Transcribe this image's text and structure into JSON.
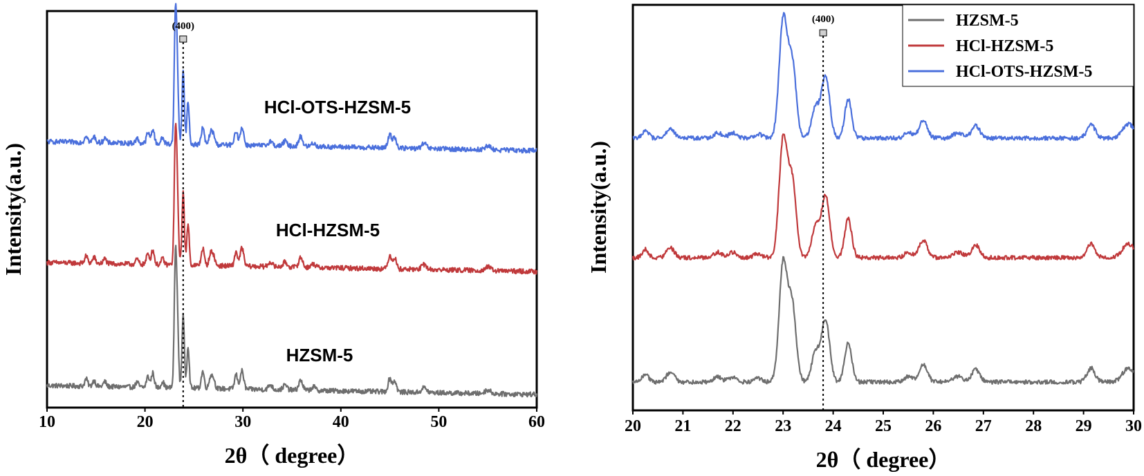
{
  "chart_data": [
    {
      "type": "line",
      "title": "",
      "xlabel": "2θ（ degree）",
      "ylabel": "Intensity(a.u.)",
      "xlim": [
        10,
        60
      ],
      "xticks": [
        10,
        20,
        30,
        40,
        50,
        60
      ],
      "y_ticks_shown": false,
      "grid": false,
      "legend": "none",
      "annotation": {
        "text": "(400)",
        "x": 23.9
      },
      "series": [
        {
          "name": "HZSM-5",
          "color": "#6e6e6e",
          "offset": 0,
          "baseline_start": 0.155,
          "baseline_end": 0.08
        },
        {
          "name": "HCl-HZSM-5",
          "color": "#c0393b",
          "offset": 1,
          "baseline_start": 0.155,
          "baseline_end": 0.08
        },
        {
          "name": "HCl-OTS-HZSM-5",
          "color": "#4a6fdc",
          "offset": 2,
          "baseline_start": 0.155,
          "baseline_end": 0.08
        }
      ],
      "peaks": [
        {
          "x": 14.0,
          "h": 0.06,
          "w": 0.15
        },
        {
          "x": 14.8,
          "h": 0.05,
          "w": 0.15
        },
        {
          "x": 15.9,
          "h": 0.04,
          "w": 0.15
        },
        {
          "x": 19.2,
          "h": 0.04,
          "w": 0.15
        },
        {
          "x": 20.3,
          "h": 0.09,
          "w": 0.15
        },
        {
          "x": 20.8,
          "h": 0.12,
          "w": 0.15
        },
        {
          "x": 21.8,
          "h": 0.05,
          "w": 0.15
        },
        {
          "x": 23.1,
          "h": 1.0,
          "w": 0.12
        },
        {
          "x": 23.3,
          "h": 0.55,
          "w": 0.12
        },
        {
          "x": 23.9,
          "h": 0.6,
          "w": 0.12
        },
        {
          "x": 24.4,
          "h": 0.35,
          "w": 0.12
        },
        {
          "x": 25.9,
          "h": 0.14,
          "w": 0.15
        },
        {
          "x": 26.7,
          "h": 0.1,
          "w": 0.15
        },
        {
          "x": 27.0,
          "h": 0.08,
          "w": 0.15
        },
        {
          "x": 29.3,
          "h": 0.12,
          "w": 0.15
        },
        {
          "x": 29.9,
          "h": 0.15,
          "w": 0.18
        },
        {
          "x": 32.8,
          "h": 0.04,
          "w": 0.2
        },
        {
          "x": 34.3,
          "h": 0.04,
          "w": 0.2
        },
        {
          "x": 35.9,
          "h": 0.08,
          "w": 0.2
        },
        {
          "x": 37.2,
          "h": 0.03,
          "w": 0.2
        },
        {
          "x": 45.0,
          "h": 0.11,
          "w": 0.18
        },
        {
          "x": 45.5,
          "h": 0.09,
          "w": 0.18
        },
        {
          "x": 48.5,
          "h": 0.04,
          "w": 0.25
        },
        {
          "x": 55.0,
          "h": 0.03,
          "w": 0.3
        }
      ]
    },
    {
      "type": "line",
      "title": "",
      "xlabel": "2θ（ degree）",
      "ylabel": "Intensity(a.u.)",
      "xlim": [
        20,
        30
      ],
      "xticks": [
        20,
        21,
        22,
        23,
        24,
        25,
        26,
        27,
        28,
        29,
        30
      ],
      "y_ticks_shown": false,
      "grid": false,
      "legend": "top-right",
      "annotation": {
        "text": "(400)",
        "x": 23.8
      },
      "series": [
        {
          "name": "HZSM-5",
          "color": "#6e6e6e",
          "offset": 0,
          "baseline_start": 0.1,
          "baseline_end": 0.1
        },
        {
          "name": "HCl-HZSM-5",
          "color": "#c0393b",
          "offset": 1,
          "baseline_start": 0.1,
          "baseline_end": 0.1
        },
        {
          "name": "HCl-OTS-HZSM-5",
          "color": "#4a6fdc",
          "offset": 2,
          "baseline_start": 0.1,
          "baseline_end": 0.1
        }
      ],
      "peaks": [
        {
          "x": 20.25,
          "h": 0.06,
          "w": 0.06
        },
        {
          "x": 20.75,
          "h": 0.07,
          "w": 0.08
        },
        {
          "x": 21.7,
          "h": 0.04,
          "w": 0.08
        },
        {
          "x": 22.0,
          "h": 0.04,
          "w": 0.08
        },
        {
          "x": 22.5,
          "h": 0.03,
          "w": 0.08
        },
        {
          "x": 23.0,
          "h": 0.85,
          "w": 0.08
        },
        {
          "x": 23.18,
          "h": 0.55,
          "w": 0.08
        },
        {
          "x": 23.65,
          "h": 0.22,
          "w": 0.08
        },
        {
          "x": 23.85,
          "h": 0.45,
          "w": 0.08
        },
        {
          "x": 24.3,
          "h": 0.28,
          "w": 0.07
        },
        {
          "x": 25.5,
          "h": 0.04,
          "w": 0.08
        },
        {
          "x": 25.8,
          "h": 0.13,
          "w": 0.08
        },
        {
          "x": 26.5,
          "h": 0.04,
          "w": 0.1
        },
        {
          "x": 26.85,
          "h": 0.09,
          "w": 0.08
        },
        {
          "x": 29.15,
          "h": 0.1,
          "w": 0.08
        },
        {
          "x": 29.9,
          "h": 0.1,
          "w": 0.12
        }
      ]
    }
  ]
}
